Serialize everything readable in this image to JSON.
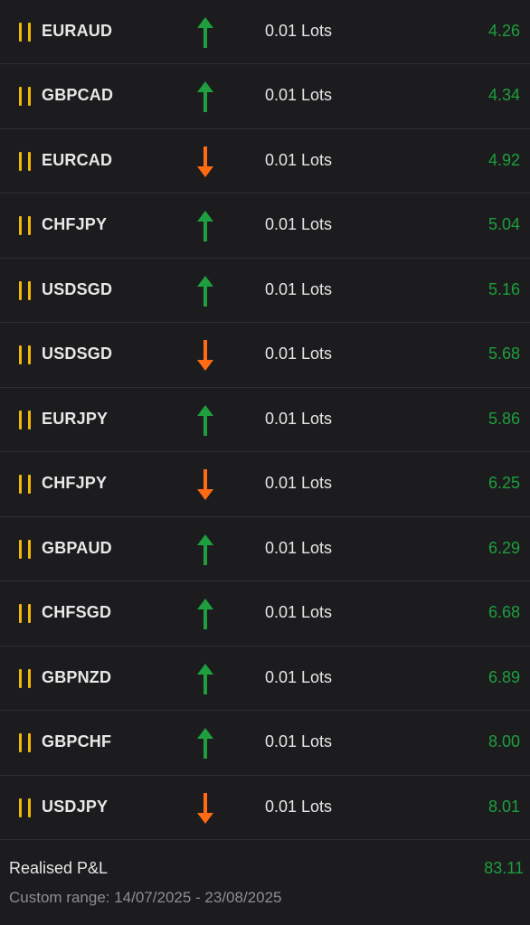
{
  "colors": {
    "background": "#1c1c1e",
    "divider": "#2f2f32",
    "pause_icon": "#f0b90b",
    "up_arrow": "#1e9e3e",
    "down_arrow": "#ff6a13",
    "profit": "#1e9e3e",
    "muted_text": "#8e8e93"
  },
  "icons": {
    "status": "pause-icon",
    "buy": "arrow-up-icon",
    "sell": "arrow-down-icon"
  },
  "trades": [
    {
      "symbol": "EURAUD",
      "direction": "up",
      "lots": "0.01 Lots",
      "profit": "4.26"
    },
    {
      "symbol": "GBPCAD",
      "direction": "up",
      "lots": "0.01 Lots",
      "profit": "4.34"
    },
    {
      "symbol": "EURCAD",
      "direction": "down",
      "lots": "0.01 Lots",
      "profit": "4.92"
    },
    {
      "symbol": "CHFJPY",
      "direction": "up",
      "lots": "0.01 Lots",
      "profit": "5.04"
    },
    {
      "symbol": "USDSGD",
      "direction": "up",
      "lots": "0.01 Lots",
      "profit": "5.16"
    },
    {
      "symbol": "USDSGD",
      "direction": "down",
      "lots": "0.01 Lots",
      "profit": "5.68"
    },
    {
      "symbol": "EURJPY",
      "direction": "up",
      "lots": "0.01 Lots",
      "profit": "5.86"
    },
    {
      "symbol": "CHFJPY",
      "direction": "down",
      "lots": "0.01 Lots",
      "profit": "6.25"
    },
    {
      "symbol": "GBPAUD",
      "direction": "up",
      "lots": "0.01 Lots",
      "profit": "6.29"
    },
    {
      "symbol": "CHFSGD",
      "direction": "up",
      "lots": "0.01 Lots",
      "profit": "6.68"
    },
    {
      "symbol": "GBPNZD",
      "direction": "up",
      "lots": "0.01 Lots",
      "profit": "6.89"
    },
    {
      "symbol": "GBPCHF",
      "direction": "up",
      "lots": "0.01 Lots",
      "profit": "8.00"
    },
    {
      "symbol": "USDJPY",
      "direction": "down",
      "lots": "0.01 Lots",
      "profit": "8.01"
    }
  ],
  "footer": {
    "realised_label": "Realised P&L",
    "realised_value": "83.11",
    "range_text": "Custom range: 14/07/2025 - 23/08/2025"
  }
}
